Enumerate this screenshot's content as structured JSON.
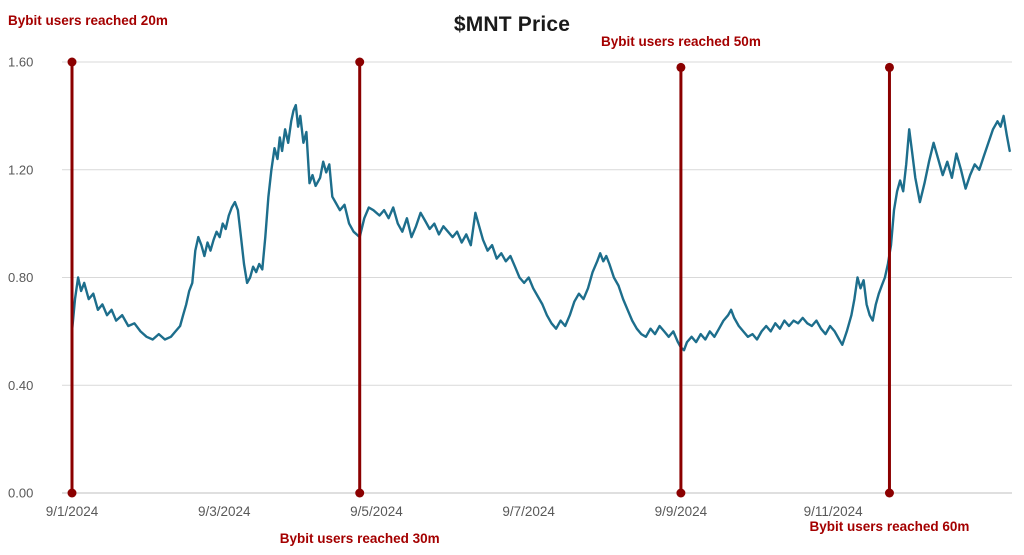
{
  "colors": {
    "series": "#1d6e8c",
    "annotation_line": "#8b0000",
    "annotation_text": "#a40000",
    "grid": "#d9d9d9",
    "axis_line": "#bfbfbf",
    "axis_text": "#595959",
    "title": "#1a1a1a",
    "background": "#ffffff"
  },
  "chart_data": {
    "type": "line",
    "title": "$MNT Price",
    "xlabel": "",
    "ylabel": "",
    "x_unit": "days since 9/1/2024",
    "xlim": [
      0,
      12.35
    ],
    "ylim": [
      0,
      1.6
    ],
    "grid": "horizontal",
    "legend": "none",
    "x_tick_values": [
      0,
      2,
      4,
      6,
      8,
      10
    ],
    "x_tick_labels": [
      "9/1/2024",
      "9/3/2024",
      "9/5/2024",
      "9/7/2024",
      "9/9/2024",
      "9/11/2024"
    ],
    "y_tick_values": [
      0,
      0.4,
      0.8,
      1.2,
      1.6
    ],
    "y_tick_labels": [
      "0.00",
      "0.40",
      "0.80",
      "1.20",
      "1.60"
    ],
    "series": [
      {
        "name": "$MNT price",
        "points": [
          [
            0,
            0.6
          ],
          [
            0.04,
            0.72
          ],
          [
            0.08,
            0.8
          ],
          [
            0.12,
            0.75
          ],
          [
            0.16,
            0.78
          ],
          [
            0.22,
            0.72
          ],
          [
            0.28,
            0.74
          ],
          [
            0.34,
            0.68
          ],
          [
            0.4,
            0.7
          ],
          [
            0.46,
            0.66
          ],
          [
            0.52,
            0.68
          ],
          [
            0.58,
            0.64
          ],
          [
            0.66,
            0.66
          ],
          [
            0.74,
            0.62
          ],
          [
            0.82,
            0.63
          ],
          [
            0.9,
            0.6
          ],
          [
            0.98,
            0.58
          ],
          [
            1.06,
            0.57
          ],
          [
            1.14,
            0.59
          ],
          [
            1.22,
            0.57
          ],
          [
            1.3,
            0.58
          ],
          [
            1.36,
            0.6
          ],
          [
            1.42,
            0.62
          ],
          [
            1.46,
            0.66
          ],
          [
            1.5,
            0.7
          ],
          [
            1.54,
            0.75
          ],
          [
            1.58,
            0.78
          ],
          [
            1.62,
            0.9
          ],
          [
            1.66,
            0.95
          ],
          [
            1.7,
            0.92
          ],
          [
            1.74,
            0.88
          ],
          [
            1.78,
            0.93
          ],
          [
            1.82,
            0.9
          ],
          [
            1.86,
            0.94
          ],
          [
            1.9,
            0.97
          ],
          [
            1.94,
            0.95
          ],
          [
            1.98,
            1.0
          ],
          [
            2.02,
            0.98
          ],
          [
            2.06,
            1.03
          ],
          [
            2.1,
            1.06
          ],
          [
            2.14,
            1.08
          ],
          [
            2.18,
            1.05
          ],
          [
            2.22,
            0.95
          ],
          [
            2.26,
            0.85
          ],
          [
            2.3,
            0.78
          ],
          [
            2.34,
            0.8
          ],
          [
            2.38,
            0.84
          ],
          [
            2.42,
            0.82
          ],
          [
            2.46,
            0.85
          ],
          [
            2.5,
            0.83
          ],
          [
            2.54,
            0.95
          ],
          [
            2.58,
            1.1
          ],
          [
            2.62,
            1.2
          ],
          [
            2.66,
            1.28
          ],
          [
            2.7,
            1.24
          ],
          [
            2.73,
            1.32
          ],
          [
            2.76,
            1.27
          ],
          [
            2.8,
            1.35
          ],
          [
            2.84,
            1.3
          ],
          [
            2.88,
            1.38
          ],
          [
            2.91,
            1.42
          ],
          [
            2.94,
            1.44
          ],
          [
            2.97,
            1.36
          ],
          [
            3.0,
            1.4
          ],
          [
            3.04,
            1.3
          ],
          [
            3.08,
            1.34
          ],
          [
            3.12,
            1.15
          ],
          [
            3.16,
            1.18
          ],
          [
            3.2,
            1.14
          ],
          [
            3.26,
            1.17
          ],
          [
            3.3,
            1.23
          ],
          [
            3.34,
            1.19
          ],
          [
            3.38,
            1.22
          ],
          [
            3.42,
            1.1
          ],
          [
            3.46,
            1.08
          ],
          [
            3.52,
            1.05
          ],
          [
            3.58,
            1.07
          ],
          [
            3.64,
            1.0
          ],
          [
            3.7,
            0.97
          ],
          [
            3.78,
            0.95
          ],
          [
            3.84,
            1.02
          ],
          [
            3.9,
            1.06
          ],
          [
            3.96,
            1.05
          ],
          [
            4.04,
            1.03
          ],
          [
            4.1,
            1.05
          ],
          [
            4.16,
            1.02
          ],
          [
            4.22,
            1.06
          ],
          [
            4.28,
            1.0
          ],
          [
            4.34,
            0.97
          ],
          [
            4.4,
            1.02
          ],
          [
            4.46,
            0.95
          ],
          [
            4.52,
            0.99
          ],
          [
            4.58,
            1.04
          ],
          [
            4.64,
            1.01
          ],
          [
            4.7,
            0.98
          ],
          [
            4.76,
            1.0
          ],
          [
            4.82,
            0.96
          ],
          [
            4.88,
            0.99
          ],
          [
            4.94,
            0.97
          ],
          [
            5.0,
            0.95
          ],
          [
            5.06,
            0.97
          ],
          [
            5.12,
            0.93
          ],
          [
            5.18,
            0.96
          ],
          [
            5.24,
            0.92
          ],
          [
            5.3,
            1.04
          ],
          [
            5.34,
            1.0
          ],
          [
            5.4,
            0.94
          ],
          [
            5.46,
            0.9
          ],
          [
            5.52,
            0.92
          ],
          [
            5.58,
            0.87
          ],
          [
            5.64,
            0.89
          ],
          [
            5.7,
            0.86
          ],
          [
            5.76,
            0.88
          ],
          [
            5.82,
            0.84
          ],
          [
            5.88,
            0.8
          ],
          [
            5.94,
            0.78
          ],
          [
            6.0,
            0.8
          ],
          [
            6.06,
            0.76
          ],
          [
            6.12,
            0.73
          ],
          [
            6.18,
            0.7
          ],
          [
            6.24,
            0.66
          ],
          [
            6.3,
            0.63
          ],
          [
            6.36,
            0.61
          ],
          [
            6.42,
            0.64
          ],
          [
            6.48,
            0.62
          ],
          [
            6.54,
            0.66
          ],
          [
            6.6,
            0.71
          ],
          [
            6.66,
            0.74
          ],
          [
            6.72,
            0.72
          ],
          [
            6.78,
            0.76
          ],
          [
            6.84,
            0.82
          ],
          [
            6.9,
            0.86
          ],
          [
            6.94,
            0.89
          ],
          [
            6.98,
            0.86
          ],
          [
            7.02,
            0.88
          ],
          [
            7.06,
            0.85
          ],
          [
            7.12,
            0.8
          ],
          [
            7.18,
            0.77
          ],
          [
            7.24,
            0.72
          ],
          [
            7.3,
            0.68
          ],
          [
            7.36,
            0.64
          ],
          [
            7.42,
            0.61
          ],
          [
            7.48,
            0.59
          ],
          [
            7.54,
            0.58
          ],
          [
            7.6,
            0.61
          ],
          [
            7.66,
            0.59
          ],
          [
            7.72,
            0.62
          ],
          [
            7.78,
            0.6
          ],
          [
            7.84,
            0.58
          ],
          [
            7.9,
            0.6
          ],
          [
            7.96,
            0.56
          ],
          [
            8.0,
            0.54
          ],
          [
            8.04,
            0.53
          ],
          [
            8.08,
            0.56
          ],
          [
            8.14,
            0.58
          ],
          [
            8.2,
            0.56
          ],
          [
            8.26,
            0.59
          ],
          [
            8.32,
            0.57
          ],
          [
            8.38,
            0.6
          ],
          [
            8.44,
            0.58
          ],
          [
            8.5,
            0.61
          ],
          [
            8.56,
            0.64
          ],
          [
            8.62,
            0.66
          ],
          [
            8.66,
            0.68
          ],
          [
            8.7,
            0.65
          ],
          [
            8.76,
            0.62
          ],
          [
            8.82,
            0.6
          ],
          [
            8.88,
            0.58
          ],
          [
            8.94,
            0.59
          ],
          [
            9.0,
            0.57
          ],
          [
            9.06,
            0.6
          ],
          [
            9.12,
            0.62
          ],
          [
            9.18,
            0.6
          ],
          [
            9.24,
            0.63
          ],
          [
            9.3,
            0.61
          ],
          [
            9.36,
            0.64
          ],
          [
            9.42,
            0.62
          ],
          [
            9.48,
            0.64
          ],
          [
            9.54,
            0.63
          ],
          [
            9.6,
            0.65
          ],
          [
            9.66,
            0.63
          ],
          [
            9.72,
            0.62
          ],
          [
            9.78,
            0.64
          ],
          [
            9.84,
            0.61
          ],
          [
            9.9,
            0.59
          ],
          [
            9.96,
            0.62
          ],
          [
            10.02,
            0.6
          ],
          [
            10.08,
            0.57
          ],
          [
            10.12,
            0.55
          ],
          [
            10.18,
            0.6
          ],
          [
            10.24,
            0.66
          ],
          [
            10.28,
            0.72
          ],
          [
            10.32,
            0.8
          ],
          [
            10.36,
            0.76
          ],
          [
            10.4,
            0.79
          ],
          [
            10.44,
            0.7
          ],
          [
            10.48,
            0.66
          ],
          [
            10.52,
            0.64
          ],
          [
            10.56,
            0.7
          ],
          [
            10.6,
            0.74
          ],
          [
            10.64,
            0.77
          ],
          [
            10.68,
            0.8
          ],
          [
            10.72,
            0.85
          ],
          [
            10.76,
            0.92
          ],
          [
            10.8,
            1.05
          ],
          [
            10.84,
            1.12
          ],
          [
            10.88,
            1.16
          ],
          [
            10.92,
            1.12
          ],
          [
            10.96,
            1.22
          ],
          [
            11.0,
            1.35
          ],
          [
            11.04,
            1.26
          ],
          [
            11.08,
            1.17
          ],
          [
            11.14,
            1.08
          ],
          [
            11.2,
            1.15
          ],
          [
            11.26,
            1.23
          ],
          [
            11.32,
            1.3
          ],
          [
            11.38,
            1.24
          ],
          [
            11.44,
            1.18
          ],
          [
            11.5,
            1.23
          ],
          [
            11.56,
            1.17
          ],
          [
            11.62,
            1.26
          ],
          [
            11.68,
            1.2
          ],
          [
            11.74,
            1.13
          ],
          [
            11.8,
            1.18
          ],
          [
            11.86,
            1.22
          ],
          [
            11.92,
            1.2
          ],
          [
            11.98,
            1.25
          ],
          [
            12.04,
            1.3
          ],
          [
            12.1,
            1.35
          ],
          [
            12.16,
            1.38
          ],
          [
            12.2,
            1.36
          ],
          [
            12.24,
            1.4
          ],
          [
            12.28,
            1.33
          ],
          [
            12.32,
            1.27
          ]
        ]
      }
    ],
    "annotations": [
      {
        "label": "Bybit users reached 20m",
        "x": 0,
        "y_bottom": 0,
        "y_top": 1.6,
        "label_position": "top-left"
      },
      {
        "label": "Bybit users reached 30m",
        "x": 3.78,
        "y_bottom": 0,
        "y_top": 1.6,
        "label_position": "bottom-center"
      },
      {
        "label": "Bybit users reached 50m",
        "x": 8.0,
        "y_bottom": 0,
        "y_top": 1.58,
        "label_position": "top-center"
      },
      {
        "label": "Bybit users reached 60m",
        "x": 10.74,
        "y_bottom": 0,
        "y_top": 1.58,
        "label_position": "bottom-right"
      }
    ]
  }
}
